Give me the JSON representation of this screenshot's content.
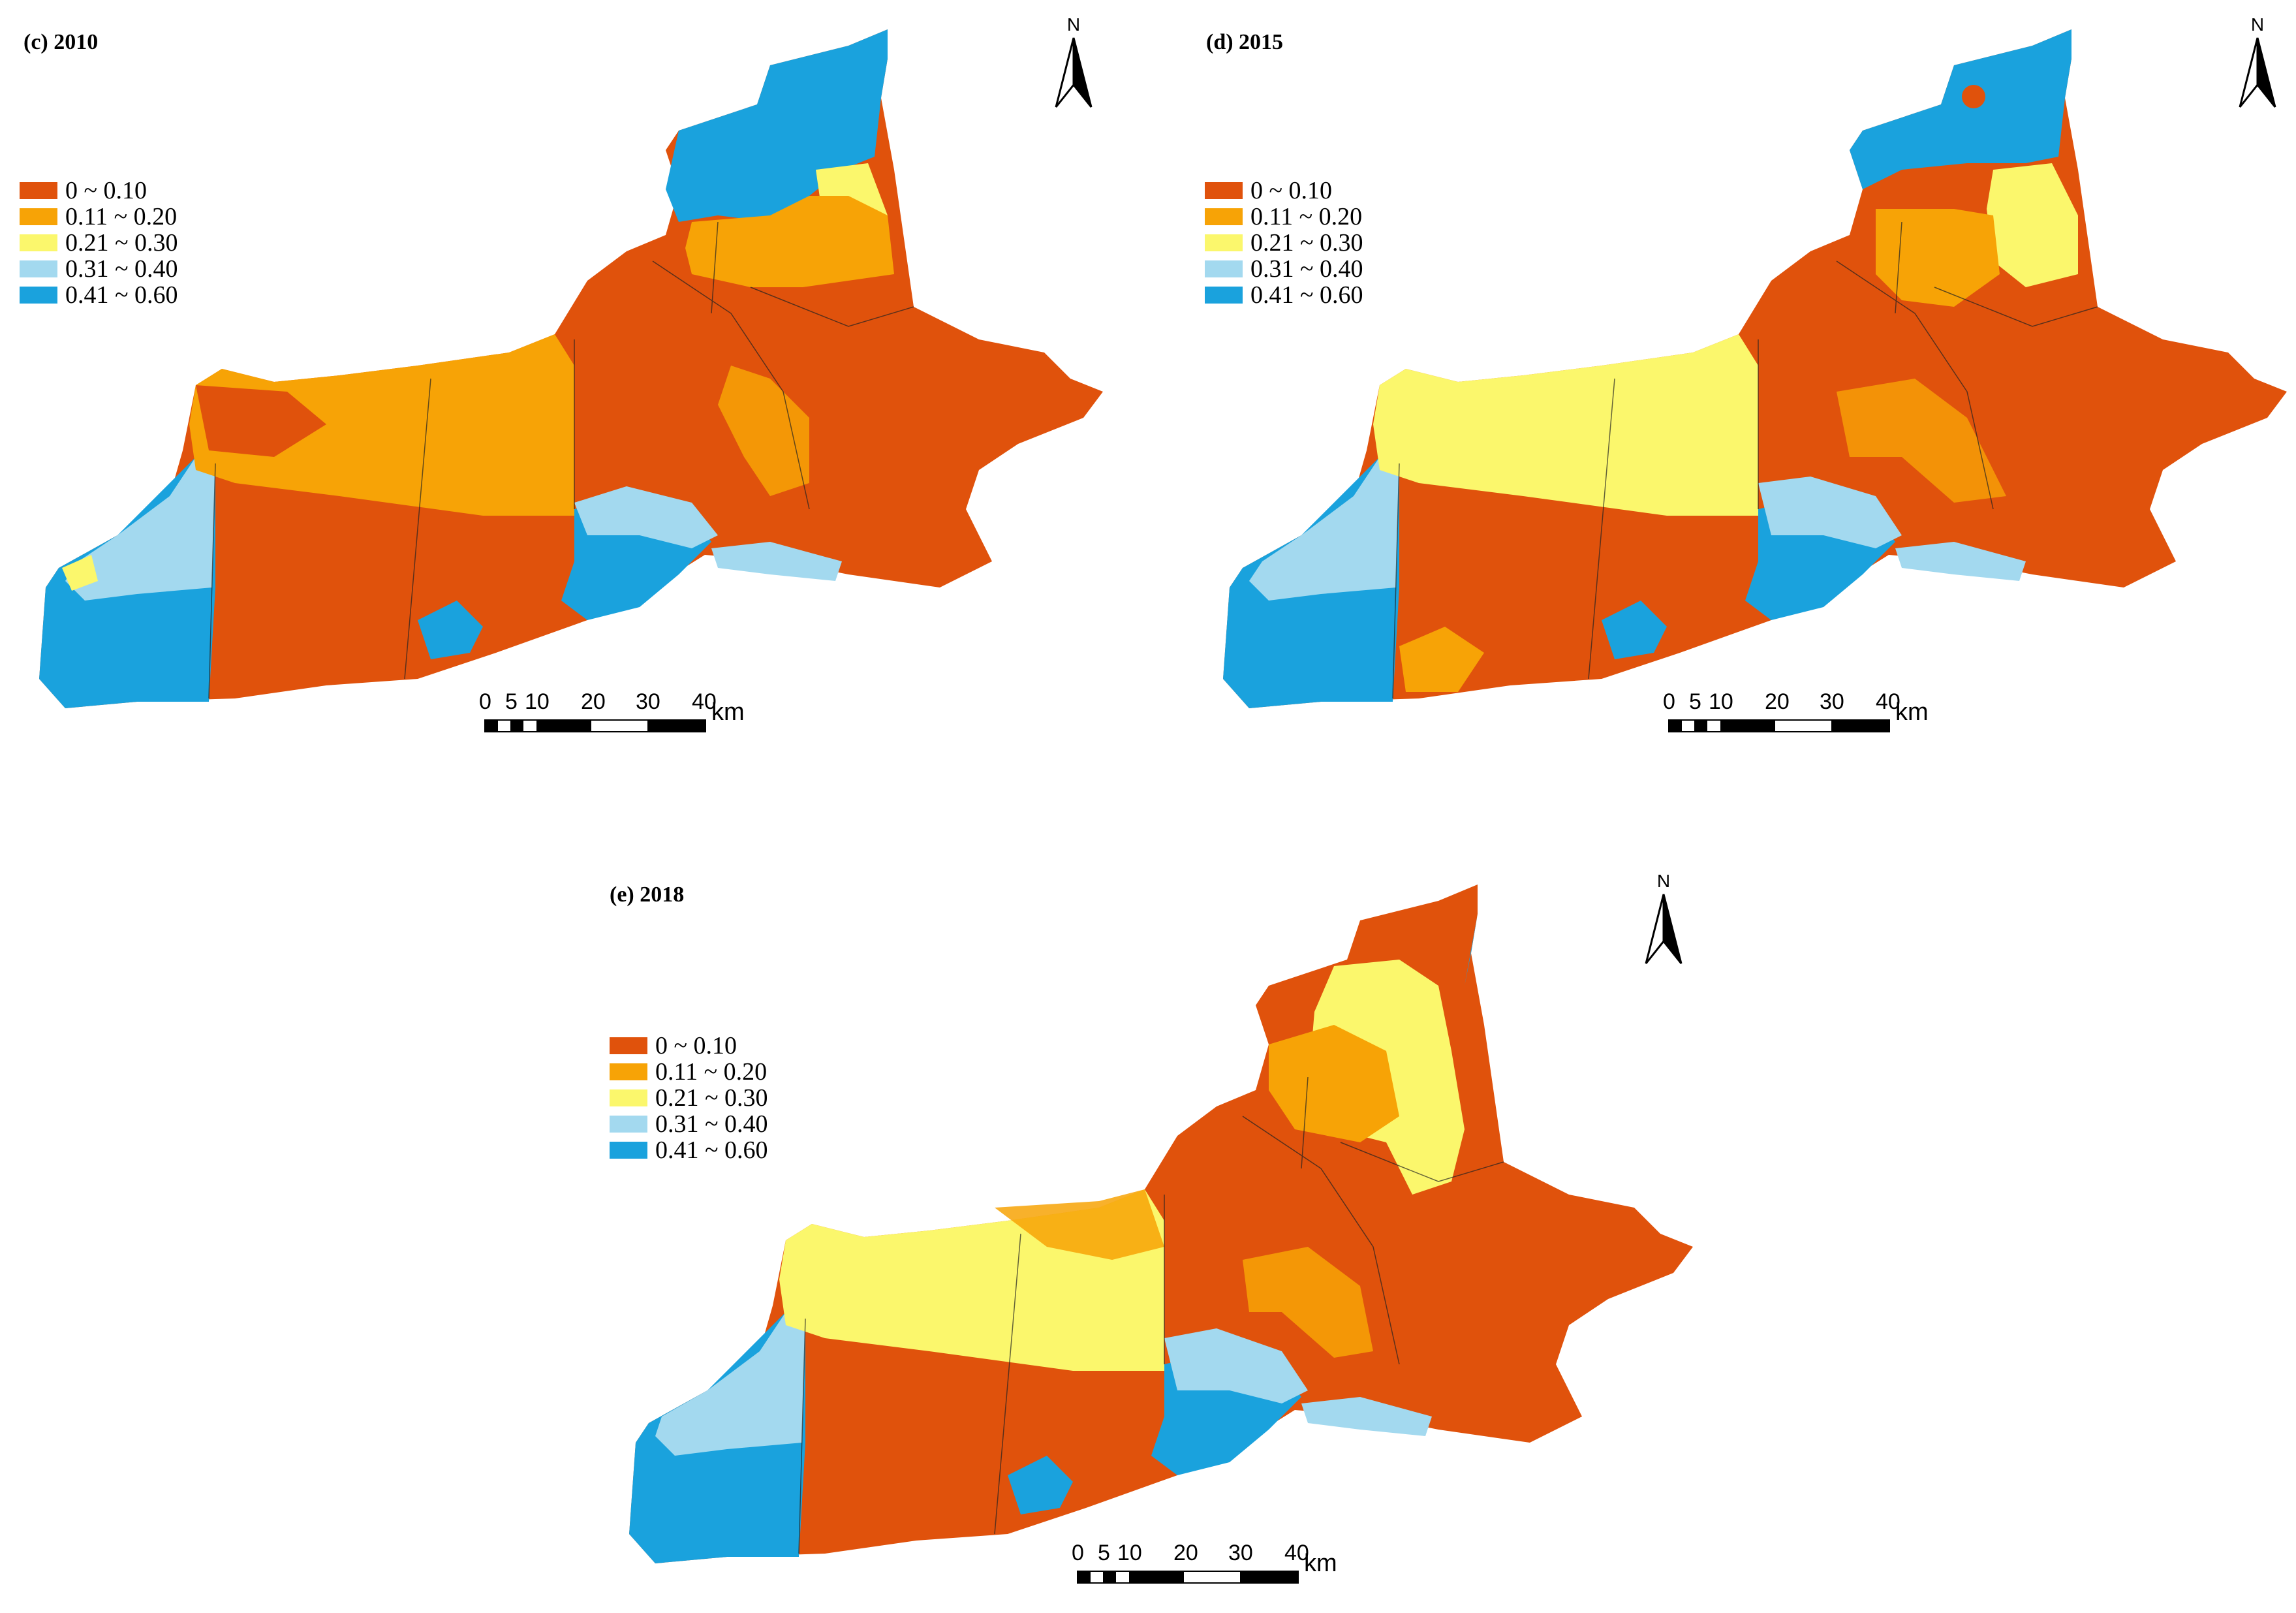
{
  "legend": {
    "classes": [
      {
        "label": "0 ~ 0.10",
        "color": "#e0520c"
      },
      {
        "label": "0.11 ~ 0.20",
        "color": "#f7a306"
      },
      {
        "label": "0.21 ~ 0.30",
        "color": "#fbf76c"
      },
      {
        "label": "0.31 ~ 0.40",
        "color": "#a3d9ef"
      },
      {
        "label": "0.41 ~ 0.60",
        "color": "#1aa2dd"
      }
    ]
  },
  "scale_bar": {
    "ticks": [
      "0",
      "5",
      "10",
      "20",
      "30",
      "40"
    ],
    "unit": "km"
  },
  "north_arrow": {
    "letter": "N",
    "icon": "north-arrow-icon"
  },
  "panels": [
    {
      "id": "c",
      "title": "(c) 2010"
    },
    {
      "id": "d",
      "title": "(d) 2015"
    },
    {
      "id": "e",
      "title": "(e) 2018"
    }
  ]
}
